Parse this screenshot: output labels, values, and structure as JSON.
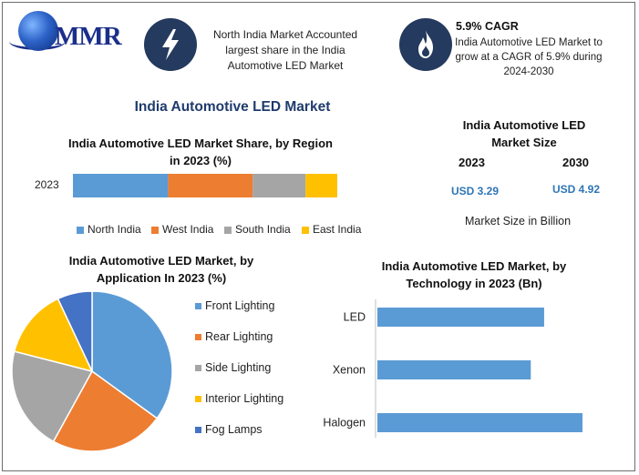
{
  "brand": {
    "logo_text": "MMR"
  },
  "header": {
    "fact1": {
      "icon": "lightning-icon",
      "text": "North India Market Accounted largest share in the India Automotive LED Market"
    },
    "fact2": {
      "icon": "flame-icon",
      "title": "5.9% CAGR",
      "text": "India Automotive LED Market to grow at a CAGR of 5.9% during 2024-2030"
    }
  },
  "main_title": "India Automotive LED Market",
  "market_size": {
    "title": "India Automotive LED Market Size",
    "year1": "2023",
    "value1": "USD 3.29",
    "year2": "2030",
    "value2": "USD 4.92",
    "caption": "Market Size in Billion"
  },
  "colors": {
    "blue": "#5b9bd5",
    "orange": "#ed7d31",
    "gray": "#a5a5a5",
    "yellow": "#ffc000",
    "darkblue": "#4472c4",
    "title": "#1f3b6e",
    "value": "#2e75b6"
  },
  "chart_data": [
    {
      "type": "bar",
      "orientation": "horizontal-stacked",
      "title": "India Automotive LED Market Share, by Region in 2023 (%)",
      "categories": [
        "2023"
      ],
      "series": [
        {
          "name": "North India",
          "values": [
            36
          ]
        },
        {
          "name": "West India",
          "values": [
            32
          ]
        },
        {
          "name": "South India",
          "values": [
            20
          ]
        },
        {
          "name": "East India",
          "values": [
            12
          ]
        }
      ],
      "legend": "bottom"
    },
    {
      "type": "pie",
      "title": "India Automotive LED Market, by Application In 2023 (%)",
      "labels": [
        "Front Lighting",
        "Rear Lighting",
        "Side Lighting",
        "Interior Lighting",
        "Fog Lamps"
      ],
      "values": [
        35,
        23,
        21,
        14,
        7
      ],
      "legend": "right"
    },
    {
      "type": "bar",
      "orientation": "horizontal",
      "title": "India Automotive LED Market, by Technology in 2023 (Bn)",
      "categories": [
        "LED",
        "Xenon",
        "Halogen"
      ],
      "values": [
        1.0,
        0.92,
        1.23
      ]
    }
  ]
}
